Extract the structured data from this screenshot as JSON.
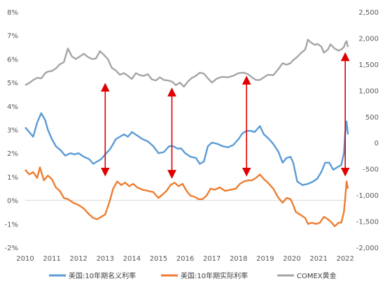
{
  "chart_data": {
    "type": "line",
    "title": "",
    "xlabel": "",
    "ylabel": "",
    "x_ticks": [
      "2010",
      "2011",
      "2012",
      "2013",
      "2014",
      "2015",
      "2016",
      "2017",
      "2018",
      "2019",
      "2020",
      "2021",
      "2022"
    ],
    "y_left_ticks": [
      "8%",
      "7%",
      "6%",
      "5%",
      "4%",
      "3%",
      "2%",
      "1%",
      "0%",
      "-1%",
      "-2%"
    ],
    "y_right_ticks": [
      "2,500",
      "2,000",
      "1,500",
      "1,000",
      "500",
      "0",
      "-500",
      "-1,000",
      "-1,500",
      "-2,000"
    ],
    "ylim_left": [
      -2,
      8
    ],
    "ylim_right": [
      -2000,
      2500
    ],
    "xlim": [
      2010,
      2022.1
    ],
    "grid": false,
    "legend_position": "bottom",
    "series": [
      {
        "name": "美国:10年期名义利率",
        "axis": "left",
        "color": "#5B9BD5",
        "points": [
          [
            2010.0,
            3.1
          ],
          [
            2010.15,
            2.9
          ],
          [
            2010.3,
            2.7
          ],
          [
            2010.45,
            3.3
          ],
          [
            2010.6,
            3.7
          ],
          [
            2010.75,
            3.4
          ],
          [
            2010.85,
            3.0
          ],
          [
            2011.0,
            2.6
          ],
          [
            2011.15,
            2.3
          ],
          [
            2011.35,
            2.1
          ],
          [
            2011.5,
            1.9
          ],
          [
            2011.7,
            2.0
          ],
          [
            2011.85,
            1.95
          ],
          [
            2012.0,
            2.0
          ],
          [
            2012.2,
            1.85
          ],
          [
            2012.4,
            1.75
          ],
          [
            2012.55,
            1.55
          ],
          [
            2012.7,
            1.65
          ],
          [
            2012.85,
            1.75
          ],
          [
            2013.0,
            1.95
          ],
          [
            2013.2,
            2.2
          ],
          [
            2013.4,
            2.6
          ],
          [
            2013.55,
            2.7
          ],
          [
            2013.7,
            2.8
          ],
          [
            2013.85,
            2.7
          ],
          [
            2014.0,
            2.9
          ],
          [
            2014.2,
            2.75
          ],
          [
            2014.4,
            2.6
          ],
          [
            2014.6,
            2.5
          ],
          [
            2014.8,
            2.3
          ],
          [
            2015.0,
            2.0
          ],
          [
            2015.2,
            2.05
          ],
          [
            2015.4,
            2.3
          ],
          [
            2015.55,
            2.3
          ],
          [
            2015.7,
            2.2
          ],
          [
            2015.85,
            2.2
          ],
          [
            2016.0,
            2.0
          ],
          [
            2016.2,
            1.85
          ],
          [
            2016.4,
            1.8
          ],
          [
            2016.55,
            1.55
          ],
          [
            2016.7,
            1.65
          ],
          [
            2016.85,
            2.3
          ],
          [
            2017.0,
            2.45
          ],
          [
            2017.2,
            2.4
          ],
          [
            2017.4,
            2.3
          ],
          [
            2017.6,
            2.25
          ],
          [
            2017.8,
            2.35
          ],
          [
            2018.0,
            2.6
          ],
          [
            2018.15,
            2.85
          ],
          [
            2018.3,
            2.95
          ],
          [
            2018.45,
            2.95
          ],
          [
            2018.6,
            2.9
          ],
          [
            2018.8,
            3.15
          ],
          [
            2018.95,
            2.8
          ],
          [
            2019.1,
            2.65
          ],
          [
            2019.3,
            2.4
          ],
          [
            2019.5,
            2.05
          ],
          [
            2019.65,
            1.6
          ],
          [
            2019.8,
            1.8
          ],
          [
            2019.95,
            1.85
          ],
          [
            2020.05,
            1.6
          ],
          [
            2020.2,
            0.8
          ],
          [
            2020.4,
            0.65
          ],
          [
            2020.6,
            0.7
          ],
          [
            2020.8,
            0.8
          ],
          [
            2020.95,
            0.92
          ],
          [
            2021.1,
            1.2
          ],
          [
            2021.25,
            1.6
          ],
          [
            2021.4,
            1.6
          ],
          [
            2021.55,
            1.3
          ],
          [
            2021.7,
            1.4
          ],
          [
            2021.85,
            1.5
          ],
          [
            2021.95,
            2.0
          ],
          [
            2022.0,
            2.9
          ],
          [
            2022.05,
            3.35
          ],
          [
            2022.1,
            2.8
          ]
        ]
      },
      {
        "name": "美国:10年期实际利率",
        "axis": "left",
        "color": "#ED7D31",
        "points": [
          [
            2010.0,
            1.3
          ],
          [
            2010.15,
            1.1
          ],
          [
            2010.3,
            1.2
          ],
          [
            2010.45,
            0.95
          ],
          [
            2010.55,
            1.4
          ],
          [
            2010.7,
            0.85
          ],
          [
            2010.85,
            1.05
          ],
          [
            2011.0,
            0.9
          ],
          [
            2011.15,
            0.55
          ],
          [
            2011.3,
            0.4
          ],
          [
            2011.45,
            0.1
          ],
          [
            2011.6,
            0.05
          ],
          [
            2011.8,
            -0.1
          ],
          [
            2012.0,
            -0.2
          ],
          [
            2012.2,
            -0.35
          ],
          [
            2012.4,
            -0.6
          ],
          [
            2012.55,
            -0.75
          ],
          [
            2012.7,
            -0.8
          ],
          [
            2012.85,
            -0.7
          ],
          [
            2013.0,
            -0.6
          ],
          [
            2013.15,
            -0.1
          ],
          [
            2013.3,
            0.5
          ],
          [
            2013.45,
            0.8
          ],
          [
            2013.6,
            0.65
          ],
          [
            2013.75,
            0.75
          ],
          [
            2013.9,
            0.6
          ],
          [
            2014.05,
            0.7
          ],
          [
            2014.2,
            0.55
          ],
          [
            2014.4,
            0.45
          ],
          [
            2014.6,
            0.4
          ],
          [
            2014.8,
            0.35
          ],
          [
            2015.0,
            0.1
          ],
          [
            2015.15,
            0.25
          ],
          [
            2015.3,
            0.4
          ],
          [
            2015.45,
            0.65
          ],
          [
            2015.6,
            0.75
          ],
          [
            2015.75,
            0.6
          ],
          [
            2015.9,
            0.7
          ],
          [
            2016.05,
            0.4
          ],
          [
            2016.2,
            0.2
          ],
          [
            2016.35,
            0.15
          ],
          [
            2016.5,
            0.05
          ],
          [
            2016.65,
            0.05
          ],
          [
            2016.8,
            0.2
          ],
          [
            2016.95,
            0.5
          ],
          [
            2017.1,
            0.45
          ],
          [
            2017.3,
            0.55
          ],
          [
            2017.5,
            0.4
          ],
          [
            2017.7,
            0.45
          ],
          [
            2017.9,
            0.5
          ],
          [
            2018.05,
            0.7
          ],
          [
            2018.2,
            0.8
          ],
          [
            2018.35,
            0.85
          ],
          [
            2018.5,
            0.85
          ],
          [
            2018.65,
            0.95
          ],
          [
            2018.8,
            1.1
          ],
          [
            2018.95,
            0.9
          ],
          [
            2019.1,
            0.75
          ],
          [
            2019.3,
            0.5
          ],
          [
            2019.5,
            0.1
          ],
          [
            2019.65,
            -0.1
          ],
          [
            2019.8,
            0.1
          ],
          [
            2019.95,
            0.05
          ],
          [
            2020.05,
            -0.2
          ],
          [
            2020.15,
            -0.5
          ],
          [
            2020.3,
            -0.6
          ],
          [
            2020.5,
            -0.75
          ],
          [
            2020.6,
            -1.0
          ],
          [
            2020.75,
            -0.95
          ],
          [
            2020.9,
            -1.0
          ],
          [
            2021.05,
            -0.95
          ],
          [
            2021.2,
            -0.7
          ],
          [
            2021.35,
            -0.8
          ],
          [
            2021.5,
            -0.95
          ],
          [
            2021.6,
            -1.1
          ],
          [
            2021.75,
            -0.95
          ],
          [
            2021.85,
            -0.95
          ],
          [
            2021.95,
            -0.5
          ],
          [
            2022.0,
            0.1
          ],
          [
            2022.05,
            0.8
          ],
          [
            2022.1,
            0.5
          ]
        ]
      },
      {
        "name": "COMEX黄金",
        "axis": "right",
        "color": "#A5A5A5",
        "points": [
          [
            2010.0,
            1100
          ],
          [
            2010.15,
            1140
          ],
          [
            2010.3,
            1200
          ],
          [
            2010.45,
            1240
          ],
          [
            2010.6,
            1230
          ],
          [
            2010.75,
            1330
          ],
          [
            2010.85,
            1360
          ],
          [
            2011.0,
            1370
          ],
          [
            2011.15,
            1420
          ],
          [
            2011.3,
            1500
          ],
          [
            2011.45,
            1540
          ],
          [
            2011.6,
            1800
          ],
          [
            2011.75,
            1650
          ],
          [
            2011.9,
            1600
          ],
          [
            2012.05,
            1650
          ],
          [
            2012.2,
            1700
          ],
          [
            2012.35,
            1640
          ],
          [
            2012.5,
            1600
          ],
          [
            2012.65,
            1610
          ],
          [
            2012.8,
            1750
          ],
          [
            2012.95,
            1680
          ],
          [
            2013.1,
            1600
          ],
          [
            2013.25,
            1430
          ],
          [
            2013.4,
            1380
          ],
          [
            2013.55,
            1300
          ],
          [
            2013.7,
            1330
          ],
          [
            2013.85,
            1280
          ],
          [
            2014.0,
            1220
          ],
          [
            2014.15,
            1330
          ],
          [
            2014.3,
            1290
          ],
          [
            2014.45,
            1280
          ],
          [
            2014.6,
            1310
          ],
          [
            2014.75,
            1210
          ],
          [
            2014.9,
            1190
          ],
          [
            2015.05,
            1250
          ],
          [
            2015.2,
            1200
          ],
          [
            2015.35,
            1190
          ],
          [
            2015.5,
            1170
          ],
          [
            2015.65,
            1100
          ],
          [
            2015.8,
            1150
          ],
          [
            2015.95,
            1070
          ],
          [
            2016.1,
            1170
          ],
          [
            2016.25,
            1240
          ],
          [
            2016.4,
            1280
          ],
          [
            2016.55,
            1340
          ],
          [
            2016.7,
            1320
          ],
          [
            2016.85,
            1230
          ],
          [
            2017.0,
            1150
          ],
          [
            2017.2,
            1230
          ],
          [
            2017.4,
            1260
          ],
          [
            2017.6,
            1250
          ],
          [
            2017.8,
            1280
          ],
          [
            2018.0,
            1330
          ],
          [
            2018.2,
            1340
          ],
          [
            2018.35,
            1310
          ],
          [
            2018.5,
            1250
          ],
          [
            2018.65,
            1200
          ],
          [
            2018.8,
            1200
          ],
          [
            2018.95,
            1250
          ],
          [
            2019.1,
            1300
          ],
          [
            2019.3,
            1290
          ],
          [
            2019.5,
            1410
          ],
          [
            2019.65,
            1520
          ],
          [
            2019.8,
            1490
          ],
          [
            2019.95,
            1520
          ],
          [
            2020.05,
            1580
          ],
          [
            2020.2,
            1640
          ],
          [
            2020.35,
            1720
          ],
          [
            2020.5,
            1780
          ],
          [
            2020.6,
            1970
          ],
          [
            2020.7,
            1920
          ],
          [
            2020.85,
            1870
          ],
          [
            2020.95,
            1890
          ],
          [
            2021.1,
            1840
          ],
          [
            2021.2,
            1720
          ],
          [
            2021.35,
            1780
          ],
          [
            2021.45,
            1880
          ],
          [
            2021.6,
            1800
          ],
          [
            2021.75,
            1760
          ],
          [
            2021.85,
            1780
          ],
          [
            2021.95,
            1830
          ],
          [
            2022.0,
            1900
          ],
          [
            2022.05,
            1940
          ],
          [
            2022.1,
            1830
          ]
        ]
      }
    ],
    "annotations": [
      {
        "type": "double-arrow",
        "color": "#E00000",
        "x": 2013.0,
        "y_top_pct": 4.8,
        "y_bottom_pct": 1.2
      },
      {
        "type": "double-arrow",
        "color": "#E00000",
        "x": 2015.5,
        "y_top_pct": 4.6,
        "y_bottom_pct": 1.1
      },
      {
        "type": "double-arrow",
        "color": "#E00000",
        "x": 2018.3,
        "y_top_pct": 5.1,
        "y_bottom_pct": 1.2
      },
      {
        "type": "double-arrow",
        "color": "#E00000",
        "x": 2022.0,
        "y_top_pct": 6.1,
        "y_bottom_pct": 1.2
      }
    ]
  }
}
